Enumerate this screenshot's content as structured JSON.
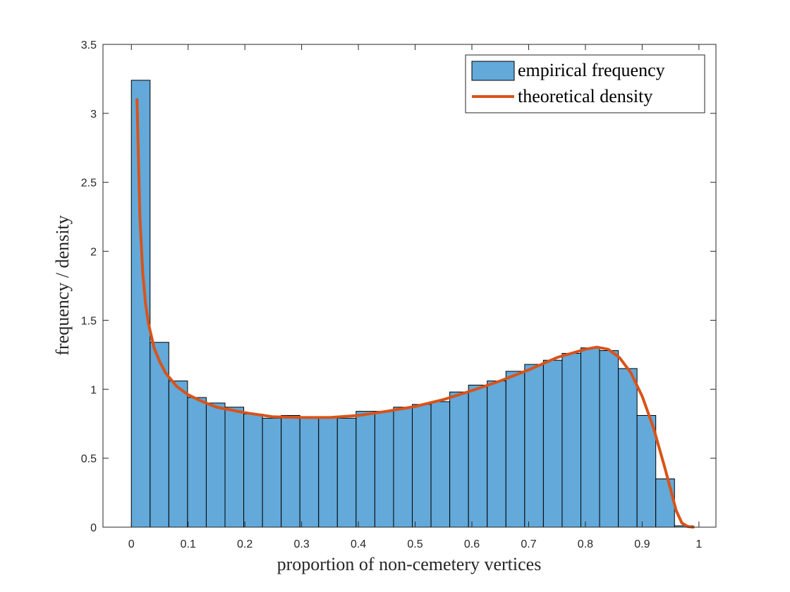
{
  "chart_data": {
    "type": "bar",
    "title": "",
    "xlabel": "proportion of non-cemetery vertices",
    "ylabel": "frequency / density",
    "xlim": [
      -0.05,
      1.03
    ],
    "ylim": [
      0,
      3.5
    ],
    "xticks": [
      0,
      0.1,
      0.2,
      0.3,
      0.4,
      0.5,
      0.6,
      0.7,
      0.8,
      0.9,
      1
    ],
    "xtick_labels": [
      "0",
      "0.1",
      "0.2",
      "0.3",
      "0.4",
      "0.5",
      "0.6",
      "0.7",
      "0.8",
      "0.9",
      "1"
    ],
    "yticks": [
      0,
      0.5,
      1,
      1.5,
      2,
      2.5,
      3,
      3.5
    ],
    "ytick_labels": [
      "0",
      "0.5",
      "1",
      "1.5",
      "2",
      "2.5",
      "3",
      "3.5"
    ],
    "bin_width": 0.033,
    "series": [
      {
        "name": "empirical frequency",
        "kind": "histogram",
        "color": "#63a9d9",
        "bin_edges": [
          0.0,
          0.033,
          0.066,
          0.099,
          0.132,
          0.165,
          0.198,
          0.231,
          0.264,
          0.297,
          0.33,
          0.363,
          0.396,
          0.429,
          0.462,
          0.495,
          0.528,
          0.561,
          0.594,
          0.627,
          0.66,
          0.693,
          0.726,
          0.759,
          0.792,
          0.825,
          0.858,
          0.891,
          0.924,
          0.957,
          0.99
        ],
        "values": [
          3.24,
          1.34,
          1.06,
          0.94,
          0.9,
          0.87,
          0.82,
          0.79,
          0.81,
          0.8,
          0.8,
          0.79,
          0.84,
          0.84,
          0.87,
          0.89,
          0.91,
          0.98,
          1.03,
          1.06,
          1.13,
          1.18,
          1.21,
          1.26,
          1.3,
          1.28,
          1.15,
          0.81,
          0.35,
          0.01
        ]
      },
      {
        "name": "theoretical density",
        "kind": "line",
        "color": "#d95319",
        "x": [
          0.01,
          0.015,
          0.02,
          0.025,
          0.03,
          0.04,
          0.05,
          0.06,
          0.08,
          0.1,
          0.12,
          0.15,
          0.2,
          0.25,
          0.3,
          0.35,
          0.4,
          0.45,
          0.5,
          0.55,
          0.6,
          0.65,
          0.7,
          0.75,
          0.8,
          0.82,
          0.84,
          0.86,
          0.88,
          0.9,
          0.92,
          0.94,
          0.96,
          0.97,
          0.98,
          0.99
        ],
        "y": [
          3.1,
          2.25,
          1.85,
          1.62,
          1.48,
          1.3,
          1.2,
          1.12,
          1.02,
          0.96,
          0.92,
          0.87,
          0.83,
          0.8,
          0.795,
          0.795,
          0.81,
          0.84,
          0.875,
          0.925,
          0.99,
          1.06,
          1.14,
          1.23,
          1.29,
          1.305,
          1.29,
          1.23,
          1.12,
          0.95,
          0.72,
          0.43,
          0.12,
          0.03,
          0.005,
          0.0
        ]
      }
    ],
    "legend_position": "top-right",
    "grid": false
  }
}
